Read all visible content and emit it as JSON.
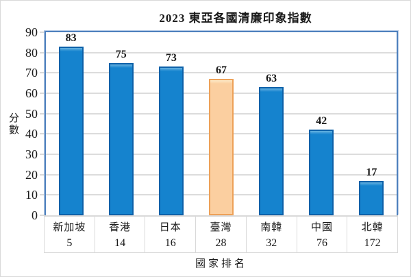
{
  "title": "2023 東亞各國清廉印象指數",
  "y_axis": {
    "label": "分數"
  },
  "x_axis": {
    "label": "國家排名"
  },
  "chart_data": {
    "type": "bar",
    "title": "2023 東亞各國清廉印象指數",
    "xlabel": "國家排名",
    "ylabel": "分數",
    "categories": [
      "新加坡",
      "香港",
      "日本",
      "臺灣",
      "南韓",
      "中國",
      "北韓"
    ],
    "values": [
      83,
      75,
      73,
      67,
      63,
      42,
      17
    ],
    "data_labels": [
      "83",
      "75",
      "73",
      "67",
      "63",
      "42",
      "17"
    ],
    "rankings": [
      "5",
      "14",
      "16",
      "28",
      "32",
      "76",
      "172"
    ],
    "highlight_index": 3,
    "highlighted_category": "臺灣",
    "ylim": [
      0,
      90
    ],
    "ytick_step": 10,
    "yticks": [
      0,
      10,
      20,
      30,
      40,
      50,
      60,
      70,
      80,
      90
    ],
    "grid": true,
    "legend": false,
    "colors": {
      "bar_fill": "#1583CE",
      "bar_border": "#0D61A9",
      "bar_top_highlight": "#66B2E0",
      "highlight_fill": "#FBCFA0",
      "highlight_border": "#EDA158",
      "highlight_top_highlight": "#FDEBC9",
      "plot_border": "#4E80BD",
      "plot_border_light": "#B9CDE7",
      "gridline": "#DCDCDC",
      "axis_line": "#D9D9D9",
      "text": "#1A1A1A"
    }
  }
}
